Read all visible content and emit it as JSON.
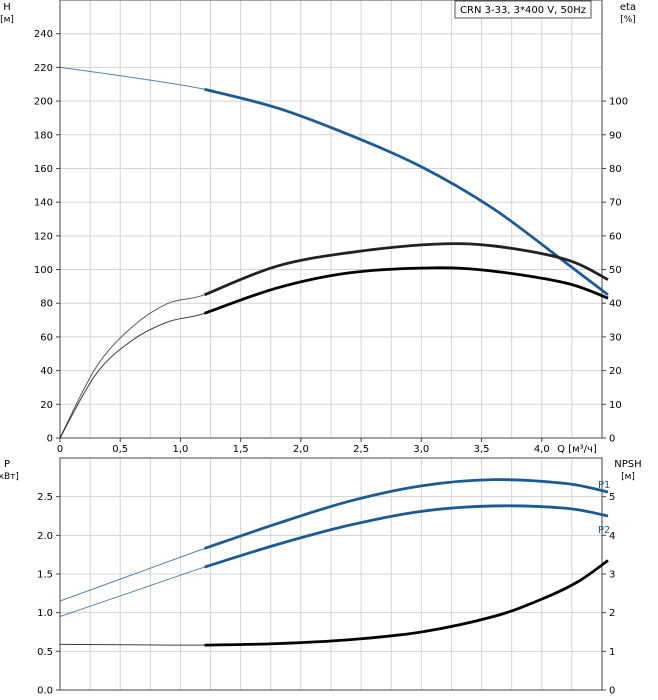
{
  "chart_data": [
    {
      "type": "line",
      "title": "CRN 3-33, 3*400 V, 50Hz",
      "xlabel": "Q [м³/ч]",
      "ylabel_left": "H",
      "ylabel_left_unit": "[м]",
      "ylabel_right": "eta",
      "ylabel_right_unit": "[%]",
      "xlim": [
        0,
        4.5
      ],
      "ylim_left": [
        0,
        260
      ],
      "ylim_right": [
        0,
        130
      ],
      "x_ticks": [
        "0",
        "0,5",
        "1,0",
        "1,5",
        "2,0",
        "2,5",
        "3,0",
        "3,5",
        "4,0"
      ],
      "y_left_ticks": [
        "0",
        "20",
        "40",
        "60",
        "80",
        "100",
        "120",
        "140",
        "160",
        "180",
        "200",
        "220",
        "240"
      ],
      "y_right_ticks": [
        "0",
        "10",
        "20",
        "30",
        "40",
        "50",
        "60",
        "70",
        "80",
        "90",
        "100"
      ],
      "grid": true,
      "series": [
        {
          "axis": "left",
          "color": "#1d5a94",
          "x": [
            0,
            0.6,
            1.2,
            1.8,
            2.4,
            3.0,
            3.6,
            4.2,
            4.55
          ],
          "y": [
            220,
            214,
            207,
            196,
            180,
            161,
            136,
            104,
            85
          ],
          "bold_from": 1.2
        },
        {
          "axis": "right",
          "color": "#222222",
          "x": [
            0,
            0.3,
            0.6,
            0.9,
            1.2,
            1.8,
            2.4,
            3.1,
            3.6,
            4.2,
            4.55
          ],
          "y": [
            0,
            21,
            33,
            40,
            42.5,
            51,
            55,
            57.5,
            57,
            53,
            47
          ],
          "bold_from": 1.2
        },
        {
          "axis": "right",
          "color": "#000000",
          "x": [
            0,
            0.3,
            0.6,
            0.9,
            1.2,
            1.8,
            2.4,
            3.1,
            3.6,
            4.2,
            4.55
          ],
          "y": [
            0,
            19,
            29,
            34.5,
            37,
            44.5,
            49,
            50.5,
            49.5,
            46,
            41.5
          ],
          "bold_from": 1.2
        }
      ]
    },
    {
      "type": "line",
      "xlabel": "",
      "ylabel_left": "P",
      "ylabel_left_unit": "[кВт]",
      "ylabel_right": "NPSH",
      "ylabel_right_unit": "[м]",
      "xlim": [
        0,
        4.5
      ],
      "ylim_left": [
        0,
        3.0
      ],
      "ylim_right": [
        0,
        6
      ],
      "y_left_ticks": [
        "0.0",
        "0.5",
        "1.0",
        "1.5",
        "2.0",
        "2.5"
      ],
      "y_right_ticks": [
        "0",
        "1",
        "2",
        "3",
        "4",
        "5"
      ],
      "grid": true,
      "series": [
        {
          "name": "P1",
          "axis": "left",
          "color": "#1d5a94",
          "x": [
            0,
            0.6,
            1.2,
            1.8,
            2.4,
            3.0,
            3.6,
            4.2,
            4.55
          ],
          "y": [
            1.15,
            1.49,
            1.83,
            2.15,
            2.44,
            2.64,
            2.72,
            2.67,
            2.56
          ],
          "bold_from": 1.2
        },
        {
          "name": "P2",
          "axis": "left",
          "color": "#1d5a94",
          "x": [
            0,
            0.6,
            1.2,
            1.8,
            2.4,
            3.0,
            3.6,
            4.2,
            4.55
          ],
          "y": [
            0.95,
            1.27,
            1.59,
            1.88,
            2.13,
            2.31,
            2.38,
            2.35,
            2.25
          ],
          "bold_from": 1.2
        },
        {
          "name": "",
          "axis": "right",
          "color": "#000000",
          "x": [
            0,
            0.6,
            1.2,
            1.8,
            2.4,
            3.0,
            3.6,
            4.0,
            4.3,
            4.55
          ],
          "y": [
            1.18,
            1.17,
            1.16,
            1.2,
            1.3,
            1.5,
            1.9,
            2.35,
            2.8,
            3.35
          ],
          "bold_from": 1.2
        }
      ]
    }
  ]
}
